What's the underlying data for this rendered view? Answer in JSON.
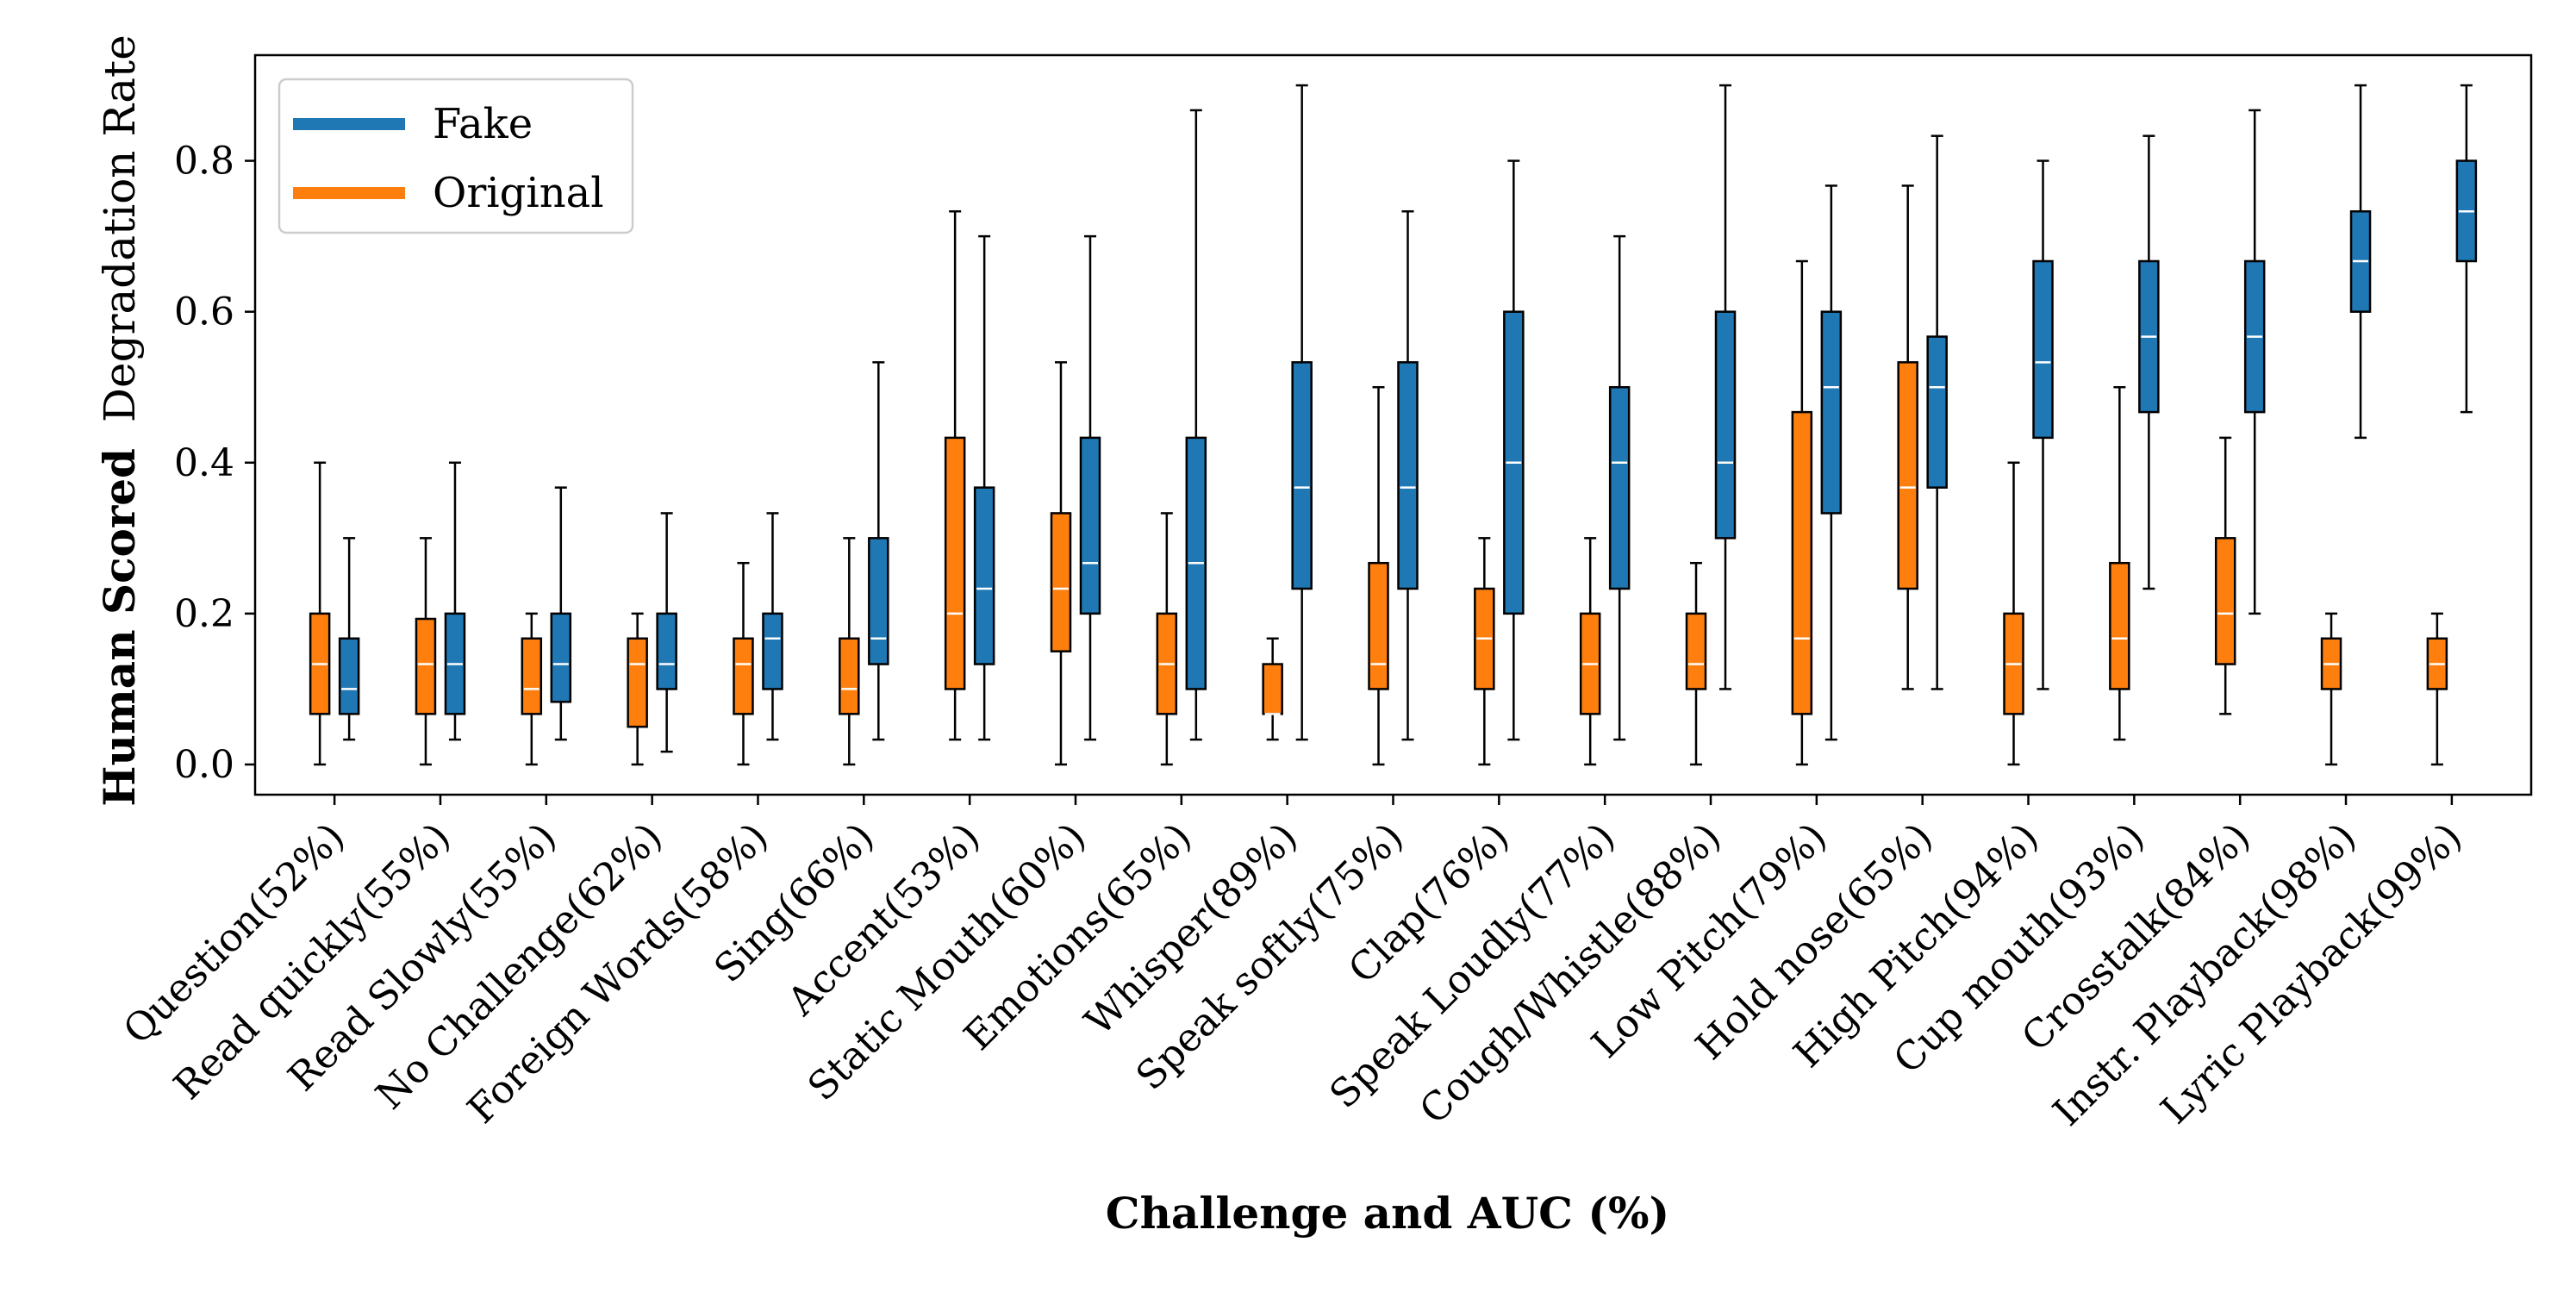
{
  "chart_data": {
    "type": "box",
    "xlabel": "Challenge and AUC (%)",
    "ylabel_bold": "Human Scored",
    "ylabel_rest": "Degradation Rate",
    "ylim": [
      -0.04,
      0.94
    ],
    "yticks": [
      "0.0",
      "0.2",
      "0.4",
      "0.6",
      "0.8"
    ],
    "ytick_values": [
      0.0,
      0.2,
      0.4,
      0.6,
      0.8
    ],
    "colors": {
      "fake": "#1f77b4",
      "original": "#ff7f0e",
      "median": "#ffffff",
      "outline": "#000000"
    },
    "legend": {
      "placement": "top-left",
      "entries": [
        {
          "label": "Fake",
          "color": "#1f77b4"
        },
        {
          "label": "Original",
          "color": "#ff7f0e"
        }
      ]
    },
    "categories": [
      "Question(52%)",
      "Read quickly(55%)",
      "Read Slowly(55%)",
      "No Challenge(62%)",
      "Foreign Words(58%)",
      "Sing(66%)",
      "Accent(53%)",
      "Static Mouth(60%)",
      "Emotions(65%)",
      "Whisper(89%)",
      "Speak softly(75%)",
      "Clap(76%)",
      "Speak Loudly(77%)",
      "Cough/Whistle(88%)",
      "Low Pitch(79%)",
      "Hold nose(65%)",
      "High Pitch(94%)",
      "Cup mouth(93%)",
      "Crosstalk(84%)",
      "Instr. Playback(98%)",
      "Lyric Playback(99%)"
    ],
    "series": [
      {
        "name": "Original",
        "boxes": [
          {
            "min": 0.0,
            "q1": 0.067,
            "median": 0.133,
            "q3": 0.2,
            "max": 0.4
          },
          {
            "min": 0.0,
            "q1": 0.067,
            "median": 0.133,
            "q3": 0.193,
            "max": 0.3
          },
          {
            "min": 0.0,
            "q1": 0.067,
            "median": 0.1,
            "q3": 0.167,
            "max": 0.2
          },
          {
            "min": 0.0,
            "q1": 0.05,
            "median": 0.133,
            "q3": 0.167,
            "max": 0.2
          },
          {
            "min": 0.0,
            "q1": 0.067,
            "median": 0.133,
            "q3": 0.167,
            "max": 0.267
          },
          {
            "min": 0.0,
            "q1": 0.067,
            "median": 0.1,
            "q3": 0.167,
            "max": 0.3
          },
          {
            "min": 0.033,
            "q1": 0.1,
            "median": 0.2,
            "q3": 0.433,
            "max": 0.733
          },
          {
            "min": 0.0,
            "q1": 0.15,
            "median": 0.233,
            "q3": 0.333,
            "max": 0.533
          },
          {
            "min": 0.0,
            "q1": 0.067,
            "median": 0.133,
            "q3": 0.2,
            "max": 0.333
          },
          {
            "min": 0.033,
            "q1": 0.067,
            "median": 0.067,
            "q3": 0.133,
            "max": 0.167
          },
          {
            "min": 0.0,
            "q1": 0.1,
            "median": 0.133,
            "q3": 0.267,
            "max": 0.5
          },
          {
            "min": 0.0,
            "q1": 0.1,
            "median": 0.167,
            "q3": 0.233,
            "max": 0.3
          },
          {
            "min": 0.0,
            "q1": 0.067,
            "median": 0.133,
            "q3": 0.2,
            "max": 0.3
          },
          {
            "min": 0.0,
            "q1": 0.1,
            "median": 0.133,
            "q3": 0.2,
            "max": 0.267
          },
          {
            "min": 0.0,
            "q1": 0.067,
            "median": 0.167,
            "q3": 0.467,
            "max": 0.667
          },
          {
            "min": 0.1,
            "q1": 0.233,
            "median": 0.367,
            "q3": 0.533,
            "max": 0.767
          },
          {
            "min": 0.0,
            "q1": 0.067,
            "median": 0.133,
            "q3": 0.2,
            "max": 0.4
          },
          {
            "min": 0.033,
            "q1": 0.1,
            "median": 0.167,
            "q3": 0.267,
            "max": 0.5
          },
          {
            "min": 0.067,
            "q1": 0.133,
            "median": 0.2,
            "q3": 0.3,
            "max": 0.433
          },
          {
            "min": 0.0,
            "q1": 0.1,
            "median": 0.133,
            "q3": 0.167,
            "max": 0.2
          },
          {
            "min": 0.0,
            "q1": 0.1,
            "median": 0.133,
            "q3": 0.167,
            "max": 0.2
          }
        ]
      },
      {
        "name": "Fake",
        "boxes": [
          {
            "min": 0.033,
            "q1": 0.067,
            "median": 0.1,
            "q3": 0.167,
            "max": 0.3
          },
          {
            "min": 0.033,
            "q1": 0.067,
            "median": 0.133,
            "q3": 0.2,
            "max": 0.4
          },
          {
            "min": 0.033,
            "q1": 0.083,
            "median": 0.133,
            "q3": 0.2,
            "max": 0.367
          },
          {
            "min": 0.017,
            "q1": 0.1,
            "median": 0.133,
            "q3": 0.2,
            "max": 0.333
          },
          {
            "min": 0.033,
            "q1": 0.1,
            "median": 0.167,
            "q3": 0.2,
            "max": 0.333
          },
          {
            "min": 0.033,
            "q1": 0.133,
            "median": 0.167,
            "q3": 0.3,
            "max": 0.533
          },
          {
            "min": 0.033,
            "q1": 0.133,
            "median": 0.233,
            "q3": 0.367,
            "max": 0.7
          },
          {
            "min": 0.033,
            "q1": 0.2,
            "median": 0.267,
            "q3": 0.433,
            "max": 0.7
          },
          {
            "min": 0.033,
            "q1": 0.1,
            "median": 0.267,
            "q3": 0.433,
            "max": 0.867
          },
          {
            "min": 0.033,
            "q1": 0.233,
            "median": 0.367,
            "q3": 0.533,
            "max": 0.9
          },
          {
            "min": 0.033,
            "q1": 0.233,
            "median": 0.367,
            "q3": 0.533,
            "max": 0.733
          },
          {
            "min": 0.033,
            "q1": 0.2,
            "median": 0.4,
            "q3": 0.6,
            "max": 0.8
          },
          {
            "min": 0.033,
            "q1": 0.233,
            "median": 0.4,
            "q3": 0.5,
            "max": 0.7
          },
          {
            "min": 0.1,
            "q1": 0.3,
            "median": 0.4,
            "q3": 0.6,
            "max": 0.9
          },
          {
            "min": 0.033,
            "q1": 0.333,
            "median": 0.5,
            "q3": 0.6,
            "max": 0.767
          },
          {
            "min": 0.1,
            "q1": 0.367,
            "median": 0.5,
            "q3": 0.567,
            "max": 0.833
          },
          {
            "min": 0.1,
            "q1": 0.433,
            "median": 0.533,
            "q3": 0.667,
            "max": 0.8
          },
          {
            "min": 0.233,
            "q1": 0.467,
            "median": 0.567,
            "q3": 0.667,
            "max": 0.833
          },
          {
            "min": 0.2,
            "q1": 0.467,
            "median": 0.567,
            "q3": 0.667,
            "max": 0.867
          },
          {
            "min": 0.433,
            "q1": 0.6,
            "median": 0.667,
            "q3": 0.733,
            "max": 0.9
          },
          {
            "min": 0.467,
            "q1": 0.667,
            "median": 0.733,
            "q3": 0.8,
            "max": 0.9
          }
        ]
      }
    ]
  }
}
